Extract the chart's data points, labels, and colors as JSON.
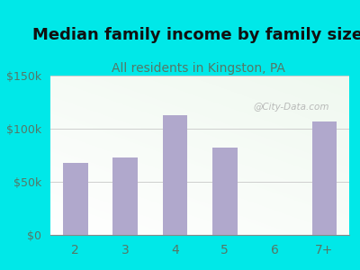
{
  "title": "Median family income by family size",
  "subtitle": "All residents in Kingston, PA",
  "categories": [
    "2",
    "3",
    "4",
    "5",
    "6",
    "7+"
  ],
  "values": [
    68000,
    73000,
    113000,
    82000,
    0,
    107000
  ],
  "bar_color": "#b0a8cc",
  "title_fontsize": 13,
  "subtitle_fontsize": 10,
  "subtitle_color": "#557766",
  "title_color": "#111111",
  "outer_bg_color": "#00e8e8",
  "plot_bg_color_topleft": "#d8eedd",
  "plot_bg_color_bottomright": "#f8f8ff",
  "tick_color": "#557766",
  "ylim": [
    0,
    150000
  ],
  "yticks": [
    0,
    50000,
    100000,
    150000
  ],
  "ytick_labels": [
    "$0",
    "$50k",
    "$100k",
    "$150k"
  ],
  "watermark": "@City-Data.com",
  "watermark_color": "#aaaaaa"
}
